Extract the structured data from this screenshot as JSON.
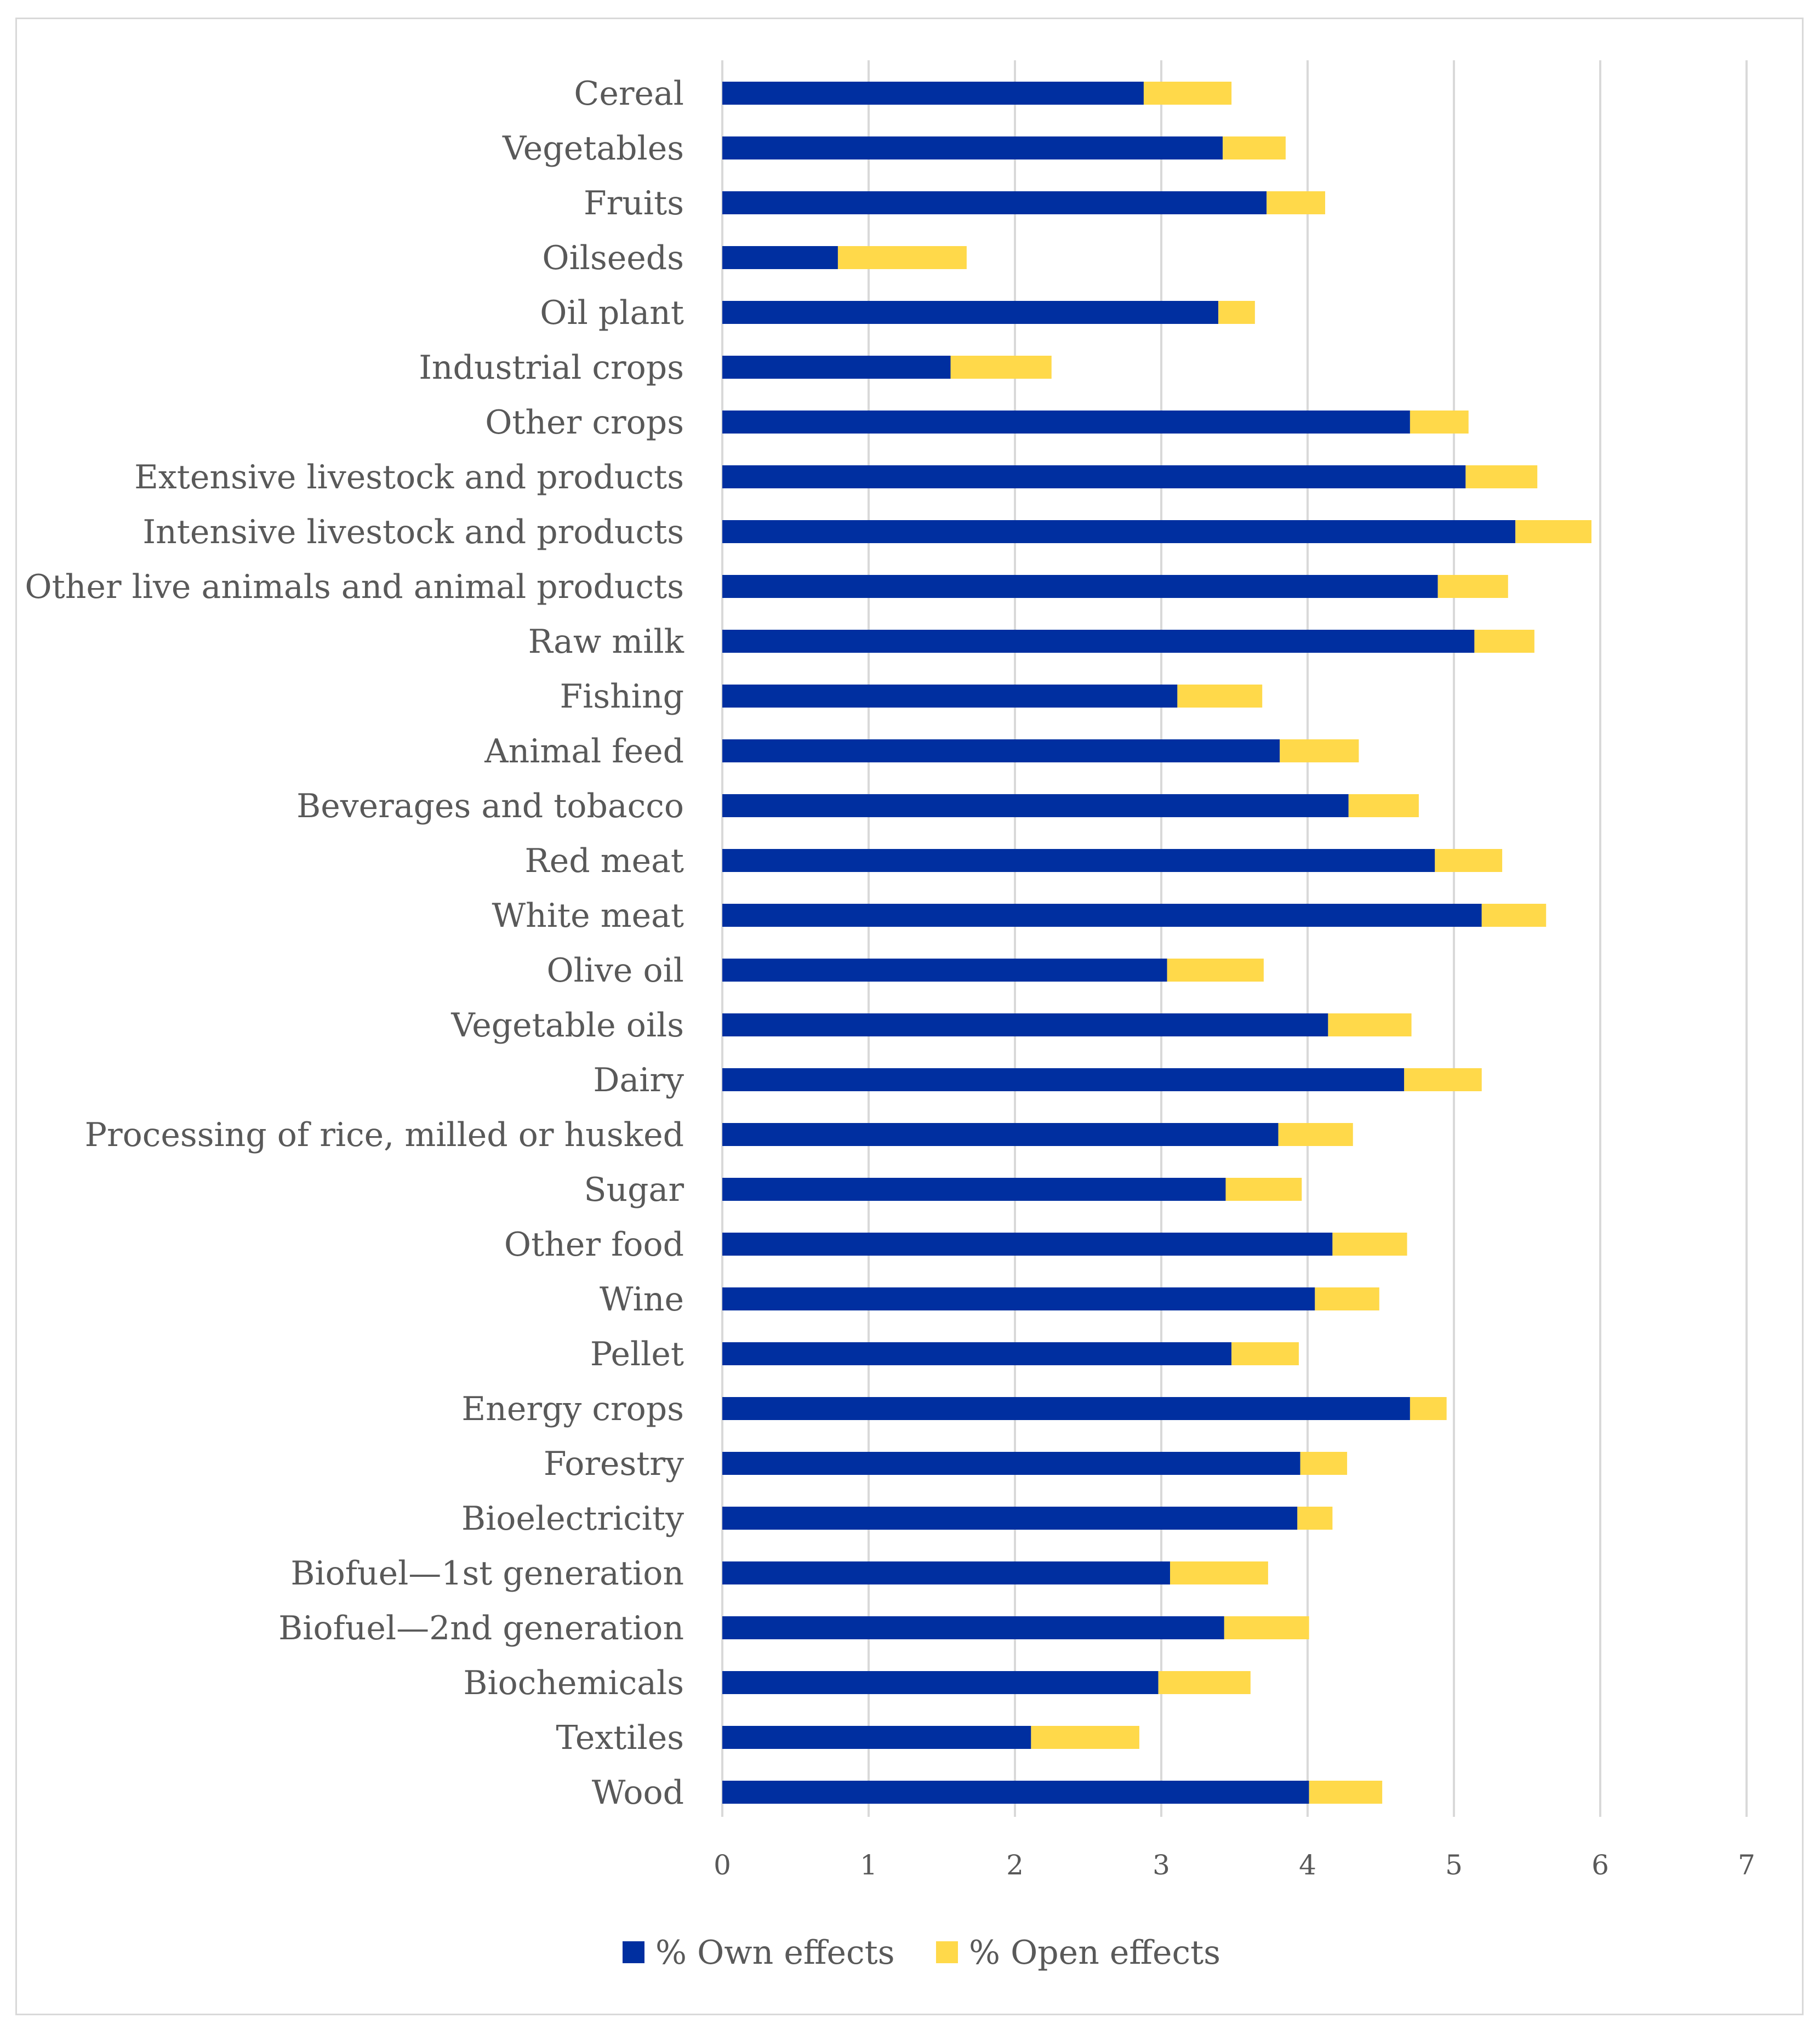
{
  "chart_data": {
    "type": "bar",
    "orientation": "horizontal",
    "stacked": true,
    "title": "",
    "xlabel": "",
    "ylabel": "",
    "xlim": [
      0,
      7
    ],
    "grid": true,
    "legend_position": "bottom",
    "categories": [
      "Cereal",
      "Vegetables",
      "Fruits",
      "Oilseeds",
      "Oil plant",
      "Industrial crops",
      "Other crops",
      "Extensive livestock and products",
      "Intensive livestock and products",
      "Other live animals and animal products",
      "Raw milk",
      "Fishing",
      "Animal feed",
      "Beverages and tobacco",
      "Red meat",
      "White meat",
      "Olive oil",
      "Vegetable oils",
      "Dairy",
      "Processing of rice, milled or husked",
      "Sugar",
      "Other food",
      "Wine",
      "Pellet",
      "Energy crops",
      "Forestry",
      "Bioelectricity",
      "Biofuel—1st generation",
      "Biofuel—2nd generation",
      "Biochemicals",
      "Textiles",
      "Wood"
    ],
    "x_ticks": [
      "0",
      "1",
      "2",
      "3",
      "4",
      "5",
      "6",
      "7"
    ],
    "series": [
      {
        "name": "% Own effects",
        "color": "#002fa0",
        "values": [
          2.88,
          3.42,
          3.72,
          0.79,
          3.39,
          1.56,
          4.7,
          5.08,
          5.42,
          4.89,
          5.14,
          3.11,
          3.81,
          4.28,
          4.87,
          5.19,
          3.04,
          4.14,
          4.66,
          3.8,
          3.44,
          4.17,
          4.05,
          3.48,
          4.7,
          3.95,
          3.93,
          3.06,
          3.43,
          2.98,
          2.11,
          4.01
        ]
      },
      {
        "name": "% Open effects",
        "color": "#ffd94a",
        "values": [
          0.6,
          0.43,
          0.4,
          0.88,
          0.25,
          0.69,
          0.4,
          0.49,
          0.52,
          0.48,
          0.41,
          0.58,
          0.54,
          0.48,
          0.46,
          0.44,
          0.66,
          0.57,
          0.53,
          0.51,
          0.52,
          0.51,
          0.44,
          0.46,
          0.25,
          0.32,
          0.24,
          0.67,
          0.58,
          0.63,
          0.74,
          0.5
        ]
      }
    ]
  }
}
